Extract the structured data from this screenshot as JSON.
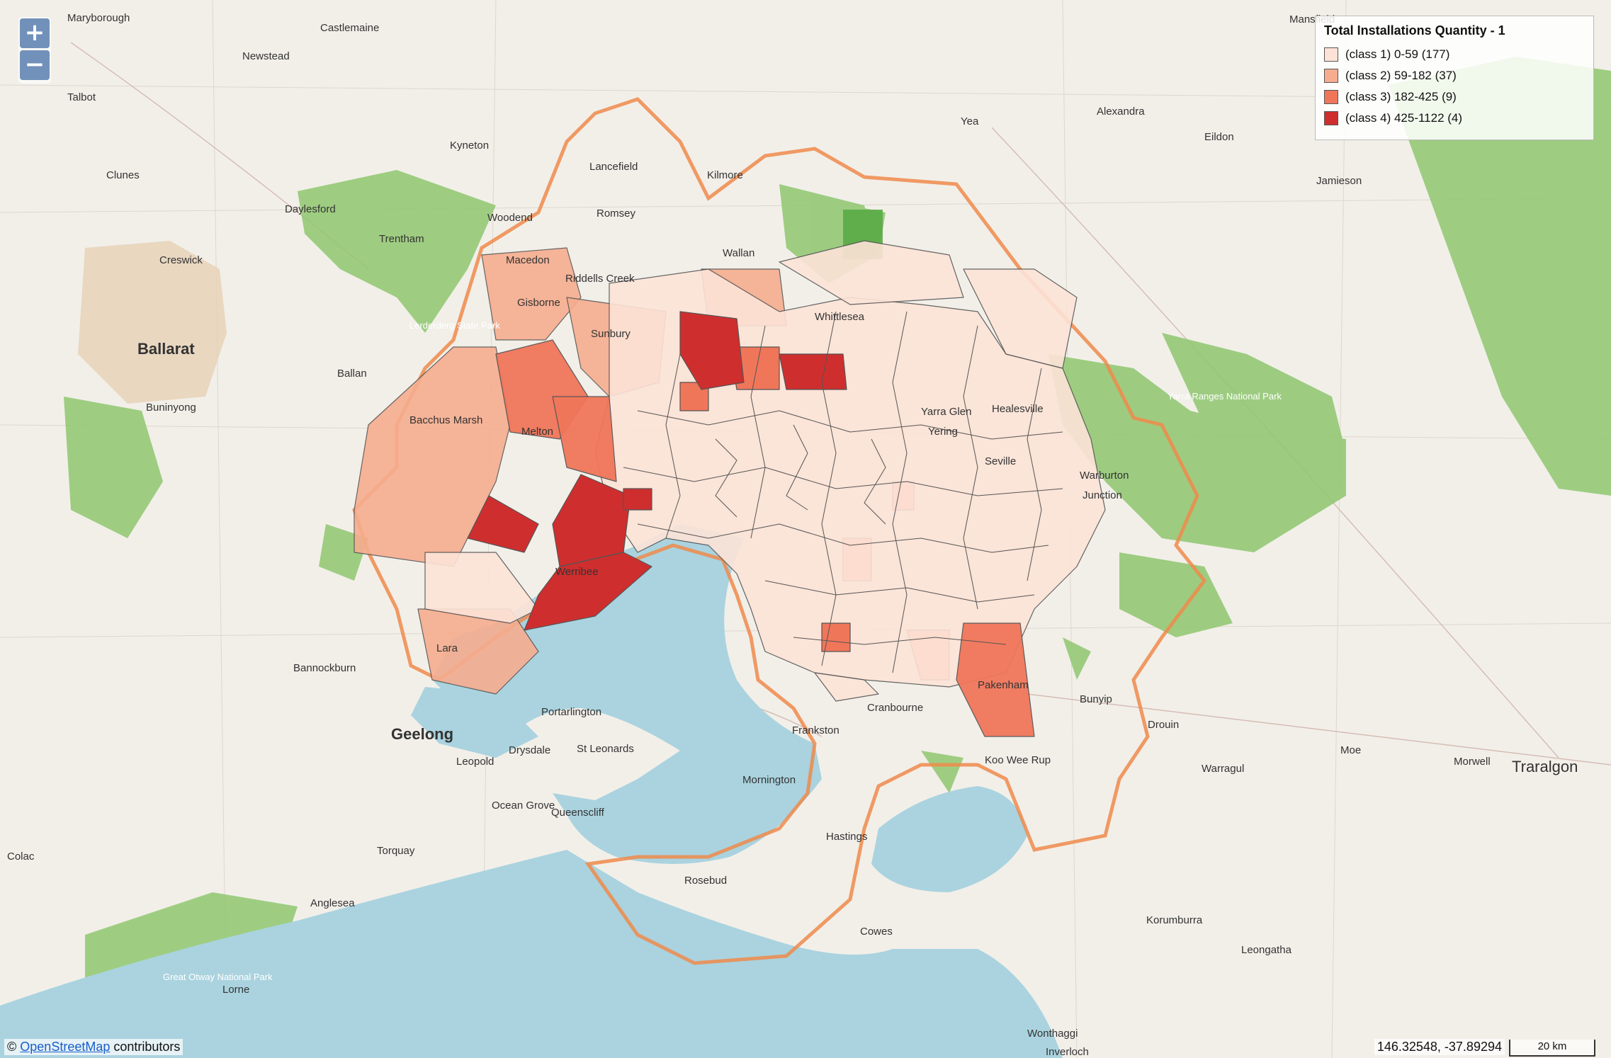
{
  "zoom": {
    "in_label": "+",
    "out_label": "−"
  },
  "legend": {
    "title": "Total Installations Quantity - 1",
    "classes": [
      {
        "label": "(class 1) 0-59 (177)",
        "color": "#fde3d7"
      },
      {
        "label": "(class 2) 59-182 (37)",
        "color": "#f6ad8f"
      },
      {
        "label": "(class 3) 182-425 (9)",
        "color": "#f0765a"
      },
      {
        "label": "(class 4) 425-1122 (4)",
        "color": "#cf2e2e"
      }
    ]
  },
  "colors": {
    "water": "#aad3df",
    "land": "#f2efe9",
    "forest": "#8fc76f",
    "boundary": "#f08a4b"
  },
  "places": [
    "Maryborough",
    "Castlemaine",
    "Newstead",
    "Talbot",
    "Kyneton",
    "Clunes",
    "Daylesford",
    "Creswick",
    "Trentham",
    "Woodend",
    "Lancefield",
    "Romsey",
    "Kilmore",
    "Macedon",
    "Riddells Creek",
    "Wallan",
    "Ballarat",
    "Ballan",
    "Buninyong",
    "Lerderderg State Park",
    "Bacchus Marsh",
    "Yea",
    "Alexandra",
    "Eildon",
    "Jamieson",
    "Mansfield",
    "Whittlesea",
    "Warburton",
    "Yarra Ranges National Park",
    "Junction",
    "Bannockburn",
    "Geelong",
    "Leopold",
    "Drysdale",
    "Portarlington",
    "St Leonards",
    "Ocean Grove",
    "Queenscliff",
    "Torquay",
    "Anglesea",
    "Lorne",
    "Great Otway National Park",
    "Colac",
    "Frankston",
    "Cranbourne",
    "Mornington",
    "Hastings",
    "Rosebud",
    "Cowes",
    "Koo Wee Rup",
    "Bunyip",
    "Drouin",
    "Warragul",
    "Moe",
    "Morwell",
    "Traralgon",
    "Korumburra",
    "Leongatha",
    "Wonthaggi",
    "Inverloch",
    "Lara",
    "Melton",
    "Sunbury",
    "Gisborne",
    "Werribee",
    "Pakenham",
    "Yarra Glen",
    "Healesville",
    "Yering",
    "Seville"
  ],
  "attribution": {
    "prefix": "©",
    "link": "OpenStreetMap",
    "suffix": "contributors"
  },
  "coords": "146.32548, -37.89294",
  "scale": "20 km"
}
